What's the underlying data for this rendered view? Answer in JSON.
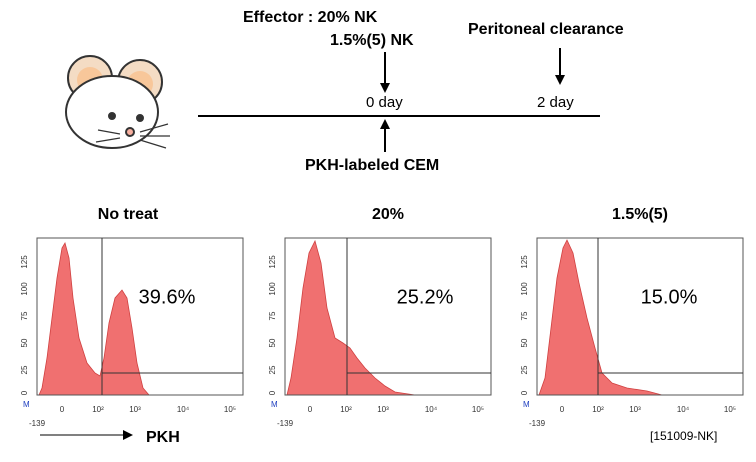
{
  "timeline": {
    "effector": "Effector : 20% NK",
    "effector_2": "1.5%(5) NK",
    "day_0": "0 day",
    "day_2": "2 day",
    "clearance": "Peritoneal clearance",
    "target": "PKH-labeled CEM"
  },
  "panels": [
    {
      "title": "No treat",
      "percent": "39.6%"
    },
    {
      "title": "20%",
      "percent": "25.2%"
    },
    {
      "title": "1.5%(5)",
      "percent": "15.0%"
    }
  ],
  "y_tick_labels": [
    "0",
    "25",
    "50",
    "75",
    "100",
    "125"
  ],
  "x_tick_labels": [
    "0",
    "10²",
    "10³",
    "10⁴",
    "10⁵"
  ],
  "x_min_label": "-139",
  "marker_label": "M",
  "axis_label": "PKH",
  "footnote": "[151009-NK]"
}
